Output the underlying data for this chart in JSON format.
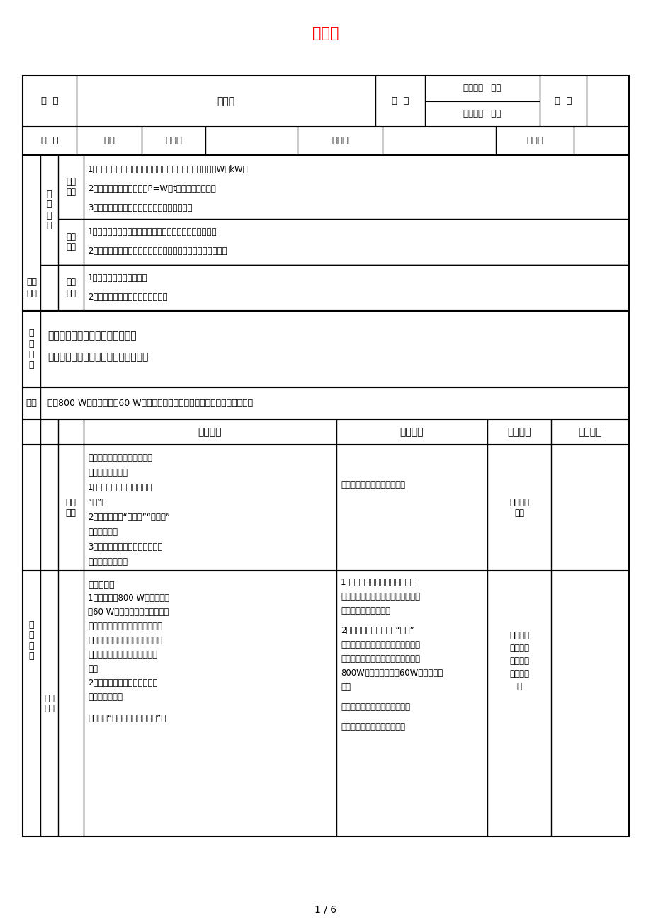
{
  "title": "电功率",
  "title_color": "#FF0000",
  "bg_color": "#FFFFFF",
  "text_color": "#000000",
  "page_num": "1 / 6",
  "ke_ti": "课  题",
  "ke_ti_val": "电功率",
  "ke_shi": "课  时",
  "ben_xue_qi": "本学期第   课时",
  "ben_dan_yuan": "本单元第   课时",
  "ri_qi": "日  期",
  "ke_xing": "课  型",
  "xin_shou": "新授",
  "zhu_bei_ren": "主备人",
  "fu_bei_ren": "复备人",
  "shen_he_ren": "审核人",
  "knowledge_label": "知识\n目标",
  "knowledge_items": [
    "1．知道电功率表示消耗电能的快慢，知道电功率的单位是W或kW。",
    "2．会用电功率的计算公式P=W／t进行简单的计算。",
    "3．会用电功率的概念解释生活中的一些现象。"
  ],
  "ability_label": "能力\n目标",
  "ability_items": [
    "1．观察体验电能表表盘转动快慢跟用电器电功率的关系。",
    "2．通过对生活中实际问题的探讨，加深对电功率概念的理解。"
  ],
  "emotion_outer": "感知\n目标",
  "emotion_label": "情感\n目标",
  "emotion_items": [
    "1．激发学生的学习兴趣。",
    "2．培养学生实事求是的科学态度。"
  ],
  "key_label": "重\n点\n难\n点",
  "key_text1": "重点：掌握电功率的概念、公式。",
  "key_text2": "难点：运用电功率公式计算实际问题。",
  "equipment_label": "器材",
  "equipment_text": "一只800 W的灯泡，一只60 W的灯泡，一个带电能表的示教板，多媒体设备。",
  "table_header": [
    "教师活动",
    "学生活动",
    "设计意图",
    "复备标注"
  ],
  "xin_ke_label": "新课\n引入",
  "section1_teacher_lines": [
    "提出问题，引导学生提出在生",
    "活中对瓦的认识。",
    "1．生活中什么地方经常提到",
    "“瓦”？",
    "2．平常所说的“瓦数大”“瓦数小”",
    "是什么意思？",
    "3．电器瓦数不一样，表现在消耗",
    "电能上有何不同？"
  ],
  "section1_student": "学生讨论出各种不同的结果。",
  "section1_design": "激励学生\n回答",
  "qi_dong_label": "启\n动\n课\n堂",
  "jiao_xue_label": "教学\n过程",
  "elec_label": "一、电功率",
  "section2_teacher_lines": [
    "1．提供一只800 W的灯泡、一",
    "只60 W的灯泡、一个接好电能表",
    "的示教板，引导学生思考怎样利用",
    "所给器材进行实验，比较两个瓦数",
    "不同的灯泡在消耗电能上有何不",
    "同？",
    "2．通过观察电能表的读数可以",
    "得到什么结论？",
    "",
    "播放视频“用电能表测量电功率”。"
  ],
  "section2_student_lines": [
    "1．在学生讨论后，选一组学生说",
    "出自己的实验思路，并对这组学生的",
    "想法进行讨论和补充。",
    "",
    "2．学生通过实验观察出“瓦数”",
    "不同时，电能表铝盘转速不同，表明",
    "了两个灯泡消耗电能的快慢不一样，",
    "800W的消耗电能快，60W的消耗电能",
    "慢。",
    "",
    "使学生得到直观认识：不同用电",
    "",
    "器消耗电能快慢是不一样的。"
  ],
  "section2_design_lines": [
    "提高学生",
    "的学习兴",
    "趣、培养",
    "学生的能",
    "力"
  ]
}
